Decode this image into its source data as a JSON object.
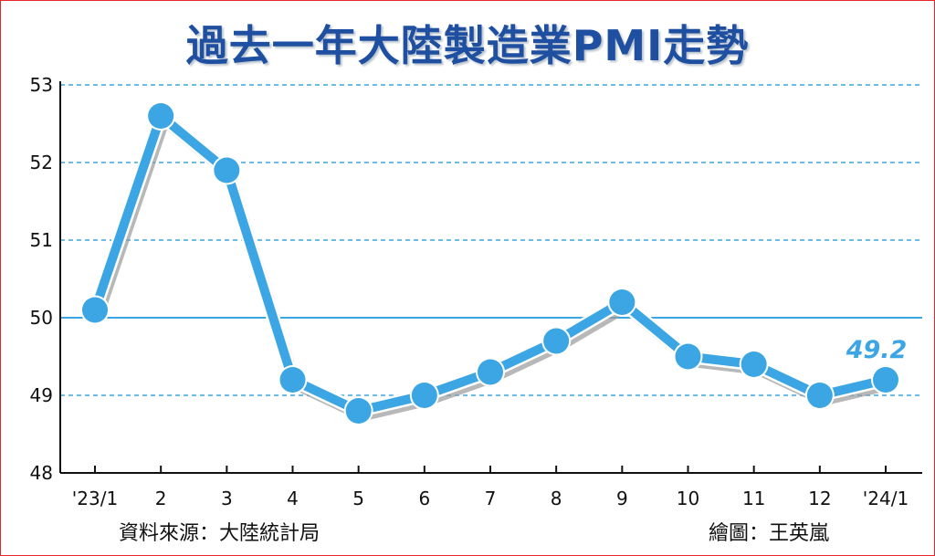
{
  "chart_data": {
    "type": "line",
    "title": "過去一年大陸製造業PMI走勢",
    "categories": [
      "'23/1",
      "2",
      "3",
      "4",
      "5",
      "6",
      "7",
      "8",
      "9",
      "10",
      "11",
      "12",
      "'24/1"
    ],
    "series": [
      {
        "values": [
          50.1,
          52.6,
          51.9,
          49.2,
          48.8,
          49.0,
          49.3,
          49.7,
          50.2,
          49.5,
          49.4,
          49.0,
          49.2
        ]
      }
    ],
    "ylim": [
      48,
      53
    ],
    "yticks": [
      "48",
      "49",
      "50",
      "51",
      "52",
      "53"
    ],
    "grid": "horizontal dashed",
    "reference_line": 50,
    "last_value_label": "49.2",
    "source": "資料來源：大陸統計局",
    "credit": "繪圖：王英嵐"
  },
  "colors": {
    "line": "#3ba6e3",
    "title": "#1f4fa0",
    "grid": "#3ba6e3",
    "axis": "#111111",
    "border": "#e8262c"
  }
}
